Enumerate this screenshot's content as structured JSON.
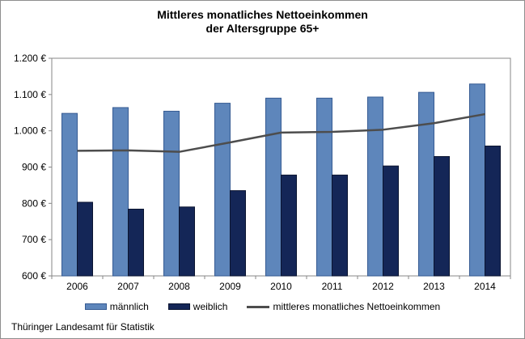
{
  "title": {
    "line1": "Mittleres monatliches Nettoeinkommen",
    "line2": "der Altersgruppe 65+"
  },
  "footer": "Thüringer Landesamt für Statistik",
  "legend": [
    {
      "label": "männlich",
      "marker": "box",
      "color": "#5e86bb",
      "border": "#365b93"
    },
    {
      "label": "weiblich",
      "marker": "box",
      "color": "#142657",
      "border": "#0a1430"
    },
    {
      "label": "mittleres monatliches Nettoeinkommen",
      "marker": "line",
      "color": "#4d4d4d"
    }
  ],
  "chart_data": {
    "type": "bar",
    "title": "Mittleres monatliches Nettoeinkommen der Altersgruppe 65+",
    "categories": [
      "2006",
      "2007",
      "2008",
      "2009",
      "2010",
      "2011",
      "2012",
      "2013",
      "2014"
    ],
    "series": [
      {
        "name": "männlich",
        "type": "bar",
        "color": "#5e86bb",
        "border": "#365b93",
        "values": [
          1048,
          1064,
          1054,
          1076,
          1090,
          1090,
          1093,
          1106,
          1129
        ]
      },
      {
        "name": "weiblich",
        "type": "bar",
        "color": "#142657",
        "border": "#0a1430",
        "values": [
          803,
          784,
          790,
          835,
          878,
          878,
          903,
          929,
          958
        ]
      },
      {
        "name": "mittleres monatliches Nettoeinkommen",
        "type": "line",
        "color": "#4d4d4d",
        "values": [
          945,
          946,
          942,
          968,
          995,
          997,
          1003,
          1021,
          1046
        ]
      }
    ],
    "xlabel": "",
    "ylabel": "",
    "ylim": [
      600,
      1200
    ],
    "y_axis": {
      "min": 600,
      "max": 1200,
      "step": 100,
      "tick_labels": [
        "600 €",
        "700 €",
        "800 €",
        "900 €",
        "1.000 €",
        "1.100 €",
        "1.200 €"
      ]
    },
    "grid": false,
    "legend_position": "bottom",
    "axis_color": "#878787"
  }
}
